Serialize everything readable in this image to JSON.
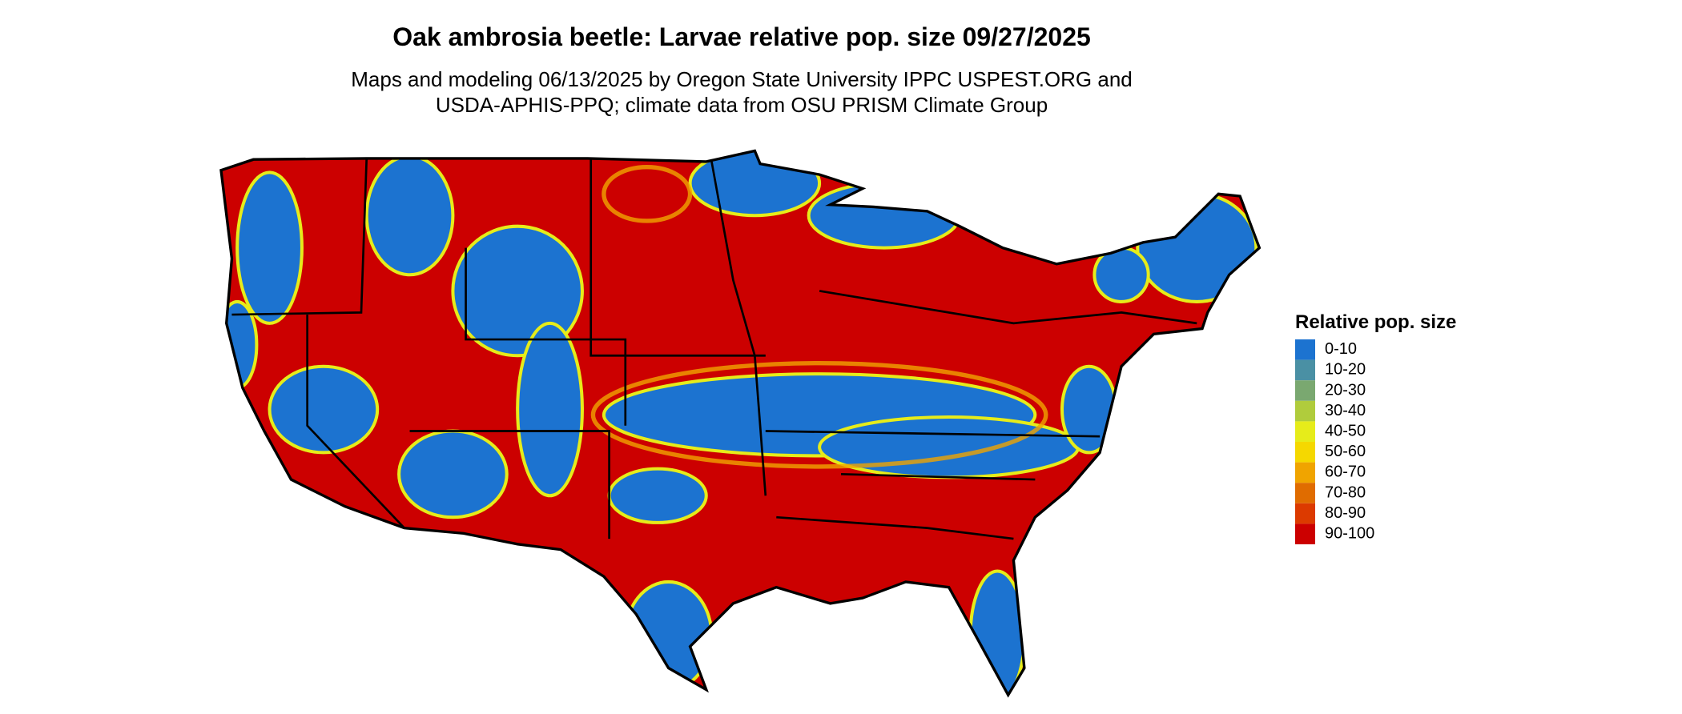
{
  "title": "Oak ambrosia beetle: Larvae relative pop. size 09/27/2025",
  "subtitle": [
    "Maps and modeling 06/13/2025 by Oregon State University IPPC USPEST.ORG and",
    "USDA-APHIS-PPQ; climate data from OSU PRISM Climate Group"
  ],
  "legend": {
    "title": "Relative pop. size",
    "items": [
      {
        "label": "0-10",
        "color": "#1c73d0"
      },
      {
        "label": "10-20",
        "color": "#4a90a4"
      },
      {
        "label": "20-30",
        "color": "#7aa870"
      },
      {
        "label": "30-40",
        "color": "#b0cc3c"
      },
      {
        "label": "40-50",
        "color": "#e6ec1a"
      },
      {
        "label": "50-60",
        "color": "#f5d800"
      },
      {
        "label": "60-70",
        "color": "#f0a400"
      },
      {
        "label": "70-80",
        "color": "#e06c00"
      },
      {
        "label": "80-90",
        "color": "#dc3a00"
      },
      {
        "label": "90-100",
        "color": "#cc0000"
      }
    ]
  }
}
